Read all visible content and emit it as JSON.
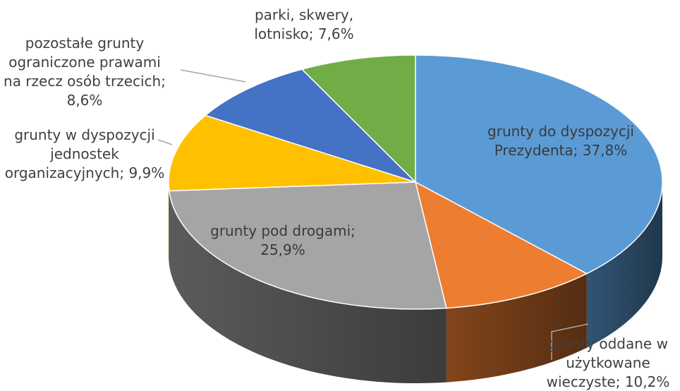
{
  "chart_data": {
    "type": "pie",
    "title": "",
    "series": [
      {
        "values": [
          37.8,
          10.2,
          25.9,
          9.9,
          8.6,
          7.6
        ],
        "labels": [
          [
            "grunty do dyspozycji",
            "Prezydenta; 37,8%"
          ],
          [
            "grunty oddane w",
            "użytkowane",
            "wieczyste; 10,2%"
          ],
          [
            "grunty pod drogami;",
            "25,9%"
          ],
          [
            "grunty w dyspozycji",
            "jednostek",
            "organizacyjnych; 9,9%"
          ],
          [
            "pozostałe grunty",
            "ograniczone prawami",
            "na rzecz osób trzecich;",
            "8,6%"
          ],
          [
            "parki, skwery,",
            "lotnisko; 7,6%"
          ]
        ],
        "colors": [
          "#5b9bd5",
          "#ed7d31",
          "#a5a5a5",
          "#ffc000",
          "#4472c4",
          "#70ad47"
        ]
      }
    ],
    "legend": "none",
    "data_labels": "category-and-value"
  }
}
